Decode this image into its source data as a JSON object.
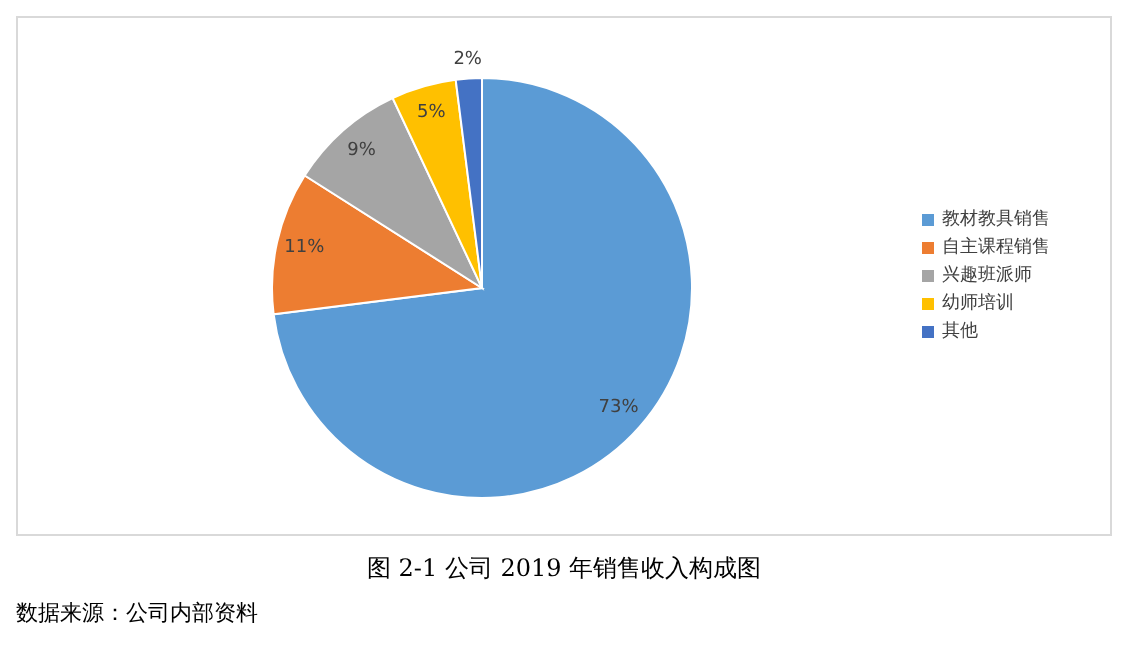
{
  "chart_data": {
    "type": "pie",
    "title": "图 2-1 公司 2019 年销售收入构成图",
    "annotations": [
      "数据来源：公司内部资料"
    ],
    "categories": [
      "教材教具销售",
      "自主课程销售",
      "兴趣班派师",
      "幼师培训",
      "其他"
    ],
    "values": [
      73,
      11,
      9,
      5,
      2
    ],
    "colors": [
      "#5b9bd5",
      "#ed7d31",
      "#a5a5a5",
      "#ffc000",
      "#4472c4"
    ],
    "value_labels": [
      "73%",
      "11%",
      "9%",
      "5%",
      "2%"
    ],
    "legend": "right"
  }
}
